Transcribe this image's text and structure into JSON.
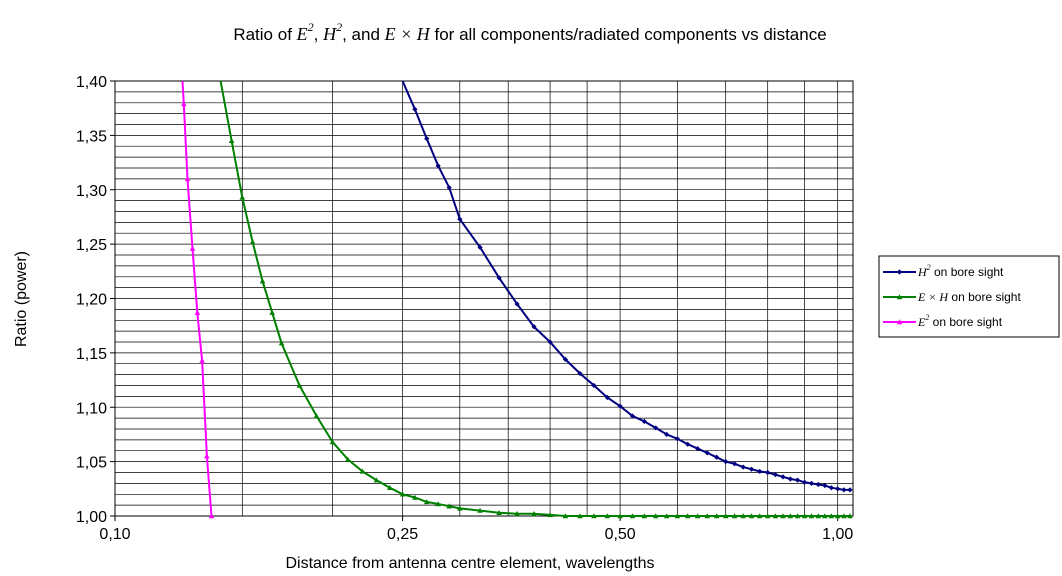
{
  "chart_data": {
    "type": "line",
    "title": {
      "prefix": "Ratio of ",
      "e_symbol": "E",
      "h_symbol": "H",
      "exponent": "2",
      "sep1": ", ",
      "sep2": ", and ",
      "cross": "E × H",
      "suffix": " for all components/radiated components vs distance"
    },
    "xlabel": "Distance from antenna centre element, wavelengths",
    "ylabel": "Ratio (power)",
    "x_scale": "log",
    "xlim": [
      0.1,
      1.05
    ],
    "ylim": [
      1.0,
      1.4
    ],
    "x_tick_labels": [
      {
        "value": 0.1,
        "label": "0,10"
      },
      {
        "value": 0.25,
        "label": "0,25"
      },
      {
        "value": 0.5,
        "label": "0,50"
      },
      {
        "value": 1.0,
        "label": "1,00"
      }
    ],
    "y_tick_labels": [
      {
        "value": 1.0,
        "label": "1,00"
      },
      {
        "value": 1.05,
        "label": "1,05"
      },
      {
        "value": 1.1,
        "label": "1,10"
      },
      {
        "value": 1.15,
        "label": "1,15"
      },
      {
        "value": 1.2,
        "label": "1,20"
      },
      {
        "value": 1.25,
        "label": "1,25"
      },
      {
        "value": 1.3,
        "label": "1,30"
      },
      {
        "value": 1.35,
        "label": "1,35"
      },
      {
        "value": 1.4,
        "label": "1,40"
      }
    ],
    "x_gridlines": [
      0.1,
      0.15,
      0.2,
      0.25,
      0.3,
      0.35,
      0.4,
      0.45,
      0.5,
      0.6,
      0.7,
      0.8,
      0.9,
      1.0
    ],
    "grid": true,
    "legend_position": "right",
    "series": [
      {
        "name": "H² on bore sight",
        "legend_symbol": "H",
        "legend_exp": "2",
        "legend_rest": " on bore sight",
        "color": "#000080",
        "marker": "diamond",
        "x": [
          0.25,
          0.26,
          0.27,
          0.28,
          0.29,
          0.3,
          0.32,
          0.34,
          0.36,
          0.38,
          0.4,
          0.42,
          0.44,
          0.46,
          0.48,
          0.5,
          0.52,
          0.54,
          0.56,
          0.58,
          0.6,
          0.62,
          0.64,
          0.66,
          0.68,
          0.7,
          0.72,
          0.74,
          0.76,
          0.78,
          0.8,
          0.82,
          0.84,
          0.86,
          0.88,
          0.9,
          0.92,
          0.94,
          0.96,
          0.98,
          1.0,
          1.02,
          1.04
        ],
        "y": [
          1.4,
          1.374,
          1.347,
          1.322,
          1.302,
          1.273,
          1.247,
          1.219,
          1.195,
          1.174,
          1.16,
          1.144,
          1.131,
          1.12,
          1.109,
          1.101,
          1.092,
          1.087,
          1.081,
          1.075,
          1.071,
          1.066,
          1.062,
          1.058,
          1.054,
          1.05,
          1.048,
          1.045,
          1.043,
          1.041,
          1.04,
          1.038,
          1.036,
          1.034,
          1.033,
          1.031,
          1.03,
          1.029,
          1.028,
          1.026,
          1.025,
          1.024,
          1.024
        ]
      },
      {
        "name": "E × H on bore sight",
        "legend_symbol": "E × H",
        "legend_exp": "",
        "legend_rest": " on bore sight",
        "color": "#008000",
        "marker": "triangle",
        "x": [
          0.14,
          0.145,
          0.15,
          0.155,
          0.16,
          0.165,
          0.17,
          0.18,
          0.19,
          0.2,
          0.21,
          0.22,
          0.23,
          0.24,
          0.25,
          0.26,
          0.27,
          0.28,
          0.29,
          0.3,
          0.32,
          0.34,
          0.36,
          0.38,
          0.4,
          0.42,
          0.44,
          0.46,
          0.48,
          0.5,
          0.52,
          0.54,
          0.56,
          0.58,
          0.6,
          0.62,
          0.64,
          0.66,
          0.68,
          0.7,
          0.72,
          0.74,
          0.76,
          0.78,
          0.8,
          0.82,
          0.84,
          0.86,
          0.88,
          0.9,
          0.92,
          0.94,
          0.96,
          0.98,
          1.0,
          1.02,
          1.04
        ],
        "y": [
          1.4,
          1.345,
          1.293,
          1.252,
          1.216,
          1.187,
          1.159,
          1.12,
          1.092,
          1.068,
          1.052,
          1.041,
          1.033,
          1.026,
          1.02,
          1.017,
          1.013,
          1.011,
          1.009,
          1.007,
          1.005,
          1.003,
          1.002,
          1.002,
          1.001,
          1.0,
          1.0,
          1.0,
          1.0,
          1.0,
          1.0,
          1.0,
          1.0,
          1.0,
          1.0,
          1.0,
          1.0,
          1.0,
          1.0,
          1.0,
          1.0,
          1.0,
          1.0,
          1.0,
          1.0,
          1.0,
          1.0,
          1.0,
          1.0,
          1.0,
          1.0,
          1.0,
          1.0,
          1.0,
          1.0,
          1.0,
          1.0
        ]
      },
      {
        "name": "E² on bore sight",
        "legend_symbol": "E",
        "legend_exp": "2",
        "legend_rest": " on bore sight",
        "color": "#ff00ff",
        "marker": "triangle",
        "x": [
          0.124,
          0.1245,
          0.126,
          0.128,
          0.13,
          0.132,
          0.134,
          0.136
        ],
        "y": [
          1.4,
          1.379,
          1.31,
          1.246,
          1.187,
          1.143,
          1.055,
          1.0
        ]
      }
    ]
  }
}
